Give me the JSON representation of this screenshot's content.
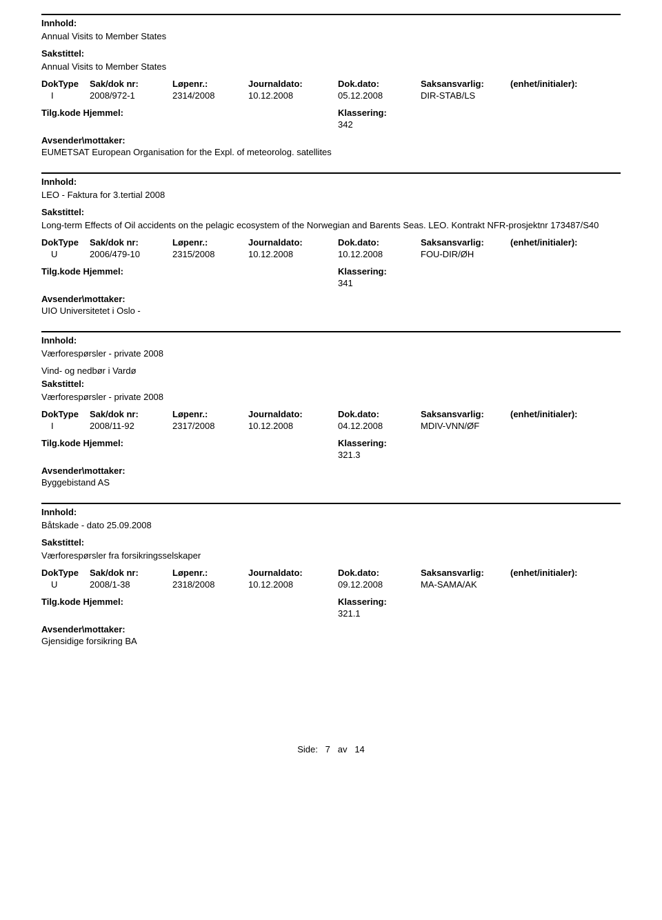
{
  "labels": {
    "innhold": "Innhold:",
    "sakstittel": "Sakstittel:",
    "doktype": "DokType",
    "saknr": "Sak/dok nr:",
    "lopenr": "Løpenr.:",
    "journaldato": "Journaldato:",
    "dokdato": "Dok.dato:",
    "saksansvarlig": "Saksansvarlig:",
    "enhet": "(enhet/initialer):",
    "tilgkode": "Tilg.kode",
    "hjemmel": "Hjemmel:",
    "klassering": "Klassering:",
    "avsender": "Avsender\\mottaker:"
  },
  "entries": [
    {
      "innhold": "Annual Visits to Member States",
      "sakstittel": "Annual Visits to Member States",
      "doktype": "I",
      "saknr": "2008/972-1",
      "lopenr": "2314/2008",
      "journaldato": "10.12.2008",
      "dokdato": "05.12.2008",
      "saksansvarlig": "DIR-STAB/LS",
      "klassering": "342",
      "avsender": "EUMETSAT European Organisation for the Expl. of meteorolog. satellites",
      "extraLine": ""
    },
    {
      "innhold": "LEO - Faktura for 3.tertial 2008",
      "sakstittel": "Long-term Effects of Oil accidents on the pelagic ecosystem of the Norwegian and Barents Seas. LEO. Kontrakt NFR-prosjektnr 173487/S40",
      "doktype": "U",
      "saknr": "2006/479-10",
      "lopenr": "2315/2008",
      "journaldato": "10.12.2008",
      "dokdato": "10.12.2008",
      "saksansvarlig": "FOU-DIR/ØH",
      "klassering": "341",
      "avsender": "UIO Universitetet i Oslo -",
      "extraLine": ""
    },
    {
      "innhold": "Værforespørsler - private 2008",
      "extraLine": "Vind- og nedbør i Vardø",
      "sakstittel": "Værforespørsler - private 2008",
      "doktype": "I",
      "saknr": "2008/11-92",
      "lopenr": "2317/2008",
      "journaldato": "10.12.2008",
      "dokdato": "04.12.2008",
      "saksansvarlig": "MDIV-VNN/ØF",
      "klassering": "321.3",
      "avsender": "Byggebistand AS"
    },
    {
      "innhold": "Båtskade - dato 25.09.2008",
      "sakstittel": "Værforespørsler fra forsikringsselskaper",
      "doktype": "U",
      "saknr": "2008/1-38",
      "lopenr": "2318/2008",
      "journaldato": "10.12.2008",
      "dokdato": "09.12.2008",
      "saksansvarlig": "MA-SAMA/AK",
      "klassering": "321.1",
      "avsender": "Gjensidige forsikring BA",
      "extraLine": ""
    }
  ],
  "footer": {
    "side": "Side:",
    "page": "7",
    "av": "av",
    "total": "14"
  }
}
